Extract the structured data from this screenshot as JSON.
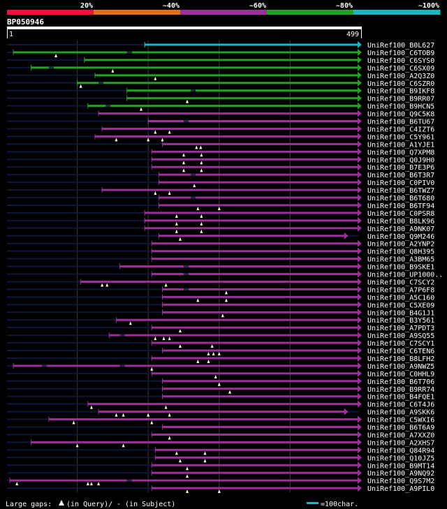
{
  "chart_data": {
    "type": "alignment-overview",
    "query_id": "BP050946",
    "query_range": [
      1,
      499
    ],
    "identity_scale": [
      {
        "label": "20%",
        "color": "#e8153c"
      },
      {
        "label": "~40%",
        "color": "#e0701a"
      },
      {
        "label": "~60%",
        "color": "#9c2f9c"
      },
      {
        "label": "~80%",
        "color": "#21a221"
      },
      {
        "label": "~100%",
        "color": "#1bb5c4"
      }
    ],
    "footer": {
      "gaps_label": "Large gaps: ",
      "query_gap_text": "(in Query)/",
      "subject_gap_text": "- (in Subject)",
      "scale_text": "=100char."
    },
    "hits": [
      {
        "name": "UniRef100_B0L627",
        "bin": 4,
        "start": 195,
        "end": 499,
        "gq": [],
        "gs": []
      },
      {
        "name": "UniRef100_C6TOB9",
        "bin": 3,
        "start": 10,
        "end": 499,
        "gq": [
          70
        ],
        "gs": [
          170
        ]
      },
      {
        "name": "UniRef100_C6SYS0",
        "bin": 3,
        "start": 110,
        "end": 499,
        "gq": [],
        "gs": []
      },
      {
        "name": "UniRef100_C6SX09",
        "bin": 3,
        "start": 35,
        "end": 499,
        "gq": [
          150
        ],
        "gs": [
          60
        ]
      },
      {
        "name": "UniRef100_A2Q3Z0",
        "bin": 3,
        "start": 125,
        "end": 499,
        "gq": [
          210
        ],
        "gs": []
      },
      {
        "name": "UniRef100_C6SZR0",
        "bin": 3,
        "start": 100,
        "end": 499,
        "gq": [
          105
        ],
        "gs": [
          130
        ]
      },
      {
        "name": "UniRef100_B9IKF8",
        "bin": 3,
        "start": 170,
        "end": 499,
        "gq": [],
        "gs": [
          260
        ]
      },
      {
        "name": "UniRef100_B9RR07",
        "bin": 3,
        "start": 170,
        "end": 499,
        "gq": [
          255
        ],
        "gs": []
      },
      {
        "name": "UniRef100_B9HCN5",
        "bin": 3,
        "start": 115,
        "end": 499,
        "gq": [
          190
        ],
        "gs": [
          140
        ]
      },
      {
        "name": "UniRef100_Q9C5K8",
        "bin": 2,
        "start": 130,
        "end": 499,
        "gq": [],
        "gs": []
      },
      {
        "name": "UniRef100_B6TU67",
        "bin": 2,
        "start": 200,
        "end": 499,
        "gq": [],
        "gs": [
          250
        ]
      },
      {
        "name": "UniRef100_C4IZT6",
        "bin": 2,
        "start": 135,
        "end": 499,
        "gq": [
          210,
          230
        ],
        "gs": []
      },
      {
        "name": "UniRef100_C5Y961",
        "bin": 2,
        "start": 125,
        "end": 499,
        "gq": [
          155,
          200,
          220
        ],
        "gs": []
      },
      {
        "name": "UniRef100_A1YJE1",
        "bin": 2,
        "start": 220,
        "end": 499,
        "gq": [
          268,
          274
        ],
        "gs": []
      },
      {
        "name": "UniRef100_Q7XPM8",
        "bin": 2,
        "start": 205,
        "end": 499,
        "gq": [
          250,
          275
        ],
        "gs": []
      },
      {
        "name": "UniRef100_Q0J9H0",
        "bin": 2,
        "start": 205,
        "end": 499,
        "gq": [
          250,
          275
        ],
        "gs": []
      },
      {
        "name": "UniRef100_B7E3P6",
        "bin": 2,
        "start": 205,
        "end": 499,
        "gq": [
          250,
          275
        ],
        "gs": []
      },
      {
        "name": "UniRef100_B6T3R7",
        "bin": 2,
        "start": 215,
        "end": 499,
        "gq": [],
        "gs": [
          260
        ]
      },
      {
        "name": "UniRef100_C0PIV0",
        "bin": 2,
        "start": 215,
        "end": 499,
        "gq": [
          265
        ],
        "gs": []
      },
      {
        "name": "UniRef100_B6TWZ7",
        "bin": 2,
        "start": 135,
        "end": 499,
        "gq": [
          210,
          230
        ],
        "gs": []
      },
      {
        "name": "UniRef100_B6T680",
        "bin": 2,
        "start": 215,
        "end": 499,
        "gq": [],
        "gs": [
          260
        ]
      },
      {
        "name": "UniRef100_B6TF94",
        "bin": 2,
        "start": 215,
        "end": 499,
        "gq": [
          270,
          300
        ],
        "gs": []
      },
      {
        "name": "UniRef100_C0PSR8",
        "bin": 2,
        "start": 195,
        "end": 499,
        "gq": [
          240,
          275
        ],
        "gs": []
      },
      {
        "name": "UniRef100_B8LK96",
        "bin": 2,
        "start": 195,
        "end": 499,
        "gq": [
          240,
          275
        ],
        "gs": []
      },
      {
        "name": "UniRef100_A9NK07",
        "bin": 2,
        "start": 195,
        "end": 499,
        "gq": [
          240,
          275
        ],
        "gs": []
      },
      {
        "name": "UniRef100_Q9M246",
        "bin": 2,
        "start": 215,
        "end": 480,
        "gq": [
          245
        ],
        "gs": []
      },
      {
        "name": "UniRef100_A2YNP2",
        "bin": 2,
        "start": 205,
        "end": 499,
        "gq": [],
        "gs": []
      },
      {
        "name": "UniRef100_Q8H395",
        "bin": 2,
        "start": 205,
        "end": 499,
        "gq": [],
        "gs": []
      },
      {
        "name": "UniRef100_A3BM65",
        "bin": 2,
        "start": 205,
        "end": 499,
        "gq": [],
        "gs": []
      },
      {
        "name": "UniRef100_B9SKE1",
        "bin": 2,
        "start": 160,
        "end": 499,
        "gq": [],
        "gs": [
          250
        ]
      },
      {
        "name": "UniRef100_UP1000..",
        "bin": 2,
        "start": 205,
        "end": 499,
        "gq": [],
        "gs": [
          250
        ]
      },
      {
        "name": "UniRef100_C7SCY2",
        "bin": 2,
        "start": 105,
        "end": 499,
        "gq": [
          135,
          142,
          225
        ],
        "gs": []
      },
      {
        "name": "UniRef100_A7P6F8",
        "bin": 2,
        "start": 220,
        "end": 499,
        "gq": [
          310
        ],
        "gs": [
          250
        ]
      },
      {
        "name": "UniRef100_A5C160",
        "bin": 2,
        "start": 220,
        "end": 499,
        "gq": [
          270,
          310
        ],
        "gs": []
      },
      {
        "name": "UniRef100_C5XE09",
        "bin": 2,
        "start": 220,
        "end": 499,
        "gq": [],
        "gs": []
      },
      {
        "name": "UniRef100_B4G1J1",
        "bin": 2,
        "start": 220,
        "end": 499,
        "gq": [
          305
        ],
        "gs": []
      },
      {
        "name": "UniRef100_B3Y561",
        "bin": 2,
        "start": 155,
        "end": 499,
        "gq": [
          175
        ],
        "gs": []
      },
      {
        "name": "UniRef100_A7PDT3",
        "bin": 2,
        "start": 205,
        "end": 499,
        "gq": [
          245
        ],
        "gs": []
      },
      {
        "name": "UniRef100_A9SQ55",
        "bin": 2,
        "start": 145,
        "end": 499,
        "gq": [
          210,
          222,
          230
        ],
        "gs": [
          160
        ]
      },
      {
        "name": "UniRef100_C7SCY1",
        "bin": 2,
        "start": 205,
        "end": 499,
        "gq": [
          245,
          290
        ],
        "gs": []
      },
      {
        "name": "UniRef100_C6TEN6",
        "bin": 2,
        "start": 220,
        "end": 499,
        "gq": [
          285,
          292,
          300
        ],
        "gs": []
      },
      {
        "name": "UniRef100_B8LFH2",
        "bin": 2,
        "start": 205,
        "end": 499,
        "gq": [
          270,
          285
        ],
        "gs": []
      },
      {
        "name": "UniRef100_A9NWZ5",
        "bin": 2,
        "start": 10,
        "end": 499,
        "gq": [
          205
        ],
        "gs": [
          50,
          160
        ]
      },
      {
        "name": "UniRef100_C0HHL9",
        "bin": 2,
        "start": 205,
        "end": 499,
        "gq": [
          295
        ],
        "gs": []
      },
      {
        "name": "UniRef100_B6T706",
        "bin": 2,
        "start": 220,
        "end": 499,
        "gq": [
          300
        ],
        "gs": []
      },
      {
        "name": "UniRef100_B9RR74",
        "bin": 2,
        "start": 220,
        "end": 499,
        "gq": [
          315
        ],
        "gs": []
      },
      {
        "name": "UniRef100_B4FQE1",
        "bin": 2,
        "start": 220,
        "end": 499,
        "gq": [],
        "gs": []
      },
      {
        "name": "UniRef100_C6T4J6",
        "bin": 2,
        "start": 115,
        "end": 499,
        "gq": [
          120,
          225
        ],
        "gs": []
      },
      {
        "name": "UniRef100_A9SKK6",
        "bin": 2,
        "start": 130,
        "end": 480,
        "gq": [
          155,
          165,
          200,
          230
        ],
        "gs": []
      },
      {
        "name": "UniRef100_C5WXI6",
        "bin": 2,
        "start": 60,
        "end": 499,
        "gq": [
          95,
          205
        ],
        "gs": []
      },
      {
        "name": "UniRef100_B6T6A9",
        "bin": 2,
        "start": 220,
        "end": 499,
        "gq": [],
        "gs": []
      },
      {
        "name": "UniRef100_A7XXZ0",
        "bin": 2,
        "start": 205,
        "end": 499,
        "gq": [
          230
        ],
        "gs": []
      },
      {
        "name": "UniRef100_A2XHS7",
        "bin": 2,
        "start": 35,
        "end": 499,
        "gq": [
          100,
          165
        ],
        "gs": []
      },
      {
        "name": "UniRef100_Q84R94",
        "bin": 2,
        "start": 210,
        "end": 499,
        "gq": [
          240,
          280
        ],
        "gs": []
      },
      {
        "name": "UniRef100_Q10JZ5",
        "bin": 2,
        "start": 210,
        "end": 499,
        "gq": [
          245,
          280
        ],
        "gs": []
      },
      {
        "name": "UniRef100_B9MT14",
        "bin": 2,
        "start": 205,
        "end": 499,
        "gq": [
          255
        ],
        "gs": []
      },
      {
        "name": "UniRef100_A9NQ92",
        "bin": 2,
        "start": 205,
        "end": 499,
        "gq": [
          255
        ],
        "gs": []
      },
      {
        "name": "UniRef100_Q9S7M2",
        "bin": 2,
        "start": 5,
        "end": 499,
        "gq": [
          15,
          115,
          120,
          130
        ],
        "gs": [
          170
        ]
      },
      {
        "name": "UniRef100_A9PIL0",
        "bin": 2,
        "start": 205,
        "end": 499,
        "gq": [
          255,
          300
        ],
        "gs": []
      }
    ]
  }
}
